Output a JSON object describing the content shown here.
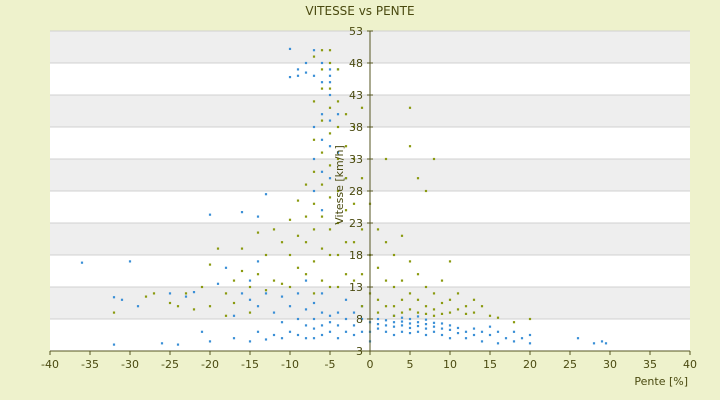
{
  "chart_data": {
    "type": "scatter",
    "title": "VITESSE vs PENTE",
    "xlabel": "Pente [%]",
    "ylabel": "Vitesse [km/h]",
    "xlim": [
      -40,
      40
    ],
    "ylim": [
      3,
      53
    ],
    "x_ticks": [
      "-40",
      "-35",
      "-30",
      "-25",
      "-20",
      "-15",
      "-10",
      "-5",
      "0",
      "5",
      "10",
      "15",
      "20",
      "25",
      "30",
      "35",
      "40"
    ],
    "y_ticks": [
      "3",
      "8",
      "13",
      "18",
      "23",
      "28",
      "33",
      "38",
      "43",
      "48",
      "53"
    ],
    "grid": true,
    "legend": "none",
    "series": [
      {
        "color": "#3a8fd6",
        "points": [
          [
            -36,
            16.8
          ],
          [
            -32,
            4.0
          ],
          [
            -32,
            11.4
          ],
          [
            -31,
            11.0
          ],
          [
            -30,
            17.0
          ],
          [
            -29,
            10.0
          ],
          [
            -26,
            4.2
          ],
          [
            -25,
            12.0
          ],
          [
            -24,
            4.0
          ],
          [
            -23,
            11.5
          ],
          [
            -22,
            12.2
          ],
          [
            -21,
            6.0
          ],
          [
            -20,
            24.3
          ],
          [
            -20,
            4.5
          ],
          [
            -19,
            13.5
          ],
          [
            -18,
            16.0
          ],
          [
            -17,
            5.0
          ],
          [
            -17,
            8.5
          ],
          [
            -16,
            12.0
          ],
          [
            -16,
            24.7
          ],
          [
            -15,
            4.5
          ],
          [
            -15,
            11.0
          ],
          [
            -15,
            14.0
          ],
          [
            -14,
            6.0
          ],
          [
            -14,
            10.0
          ],
          [
            -14,
            17.0
          ],
          [
            -14,
            24.0
          ],
          [
            -13,
            4.8
          ],
          [
            -13,
            12.0
          ],
          [
            -13,
            27.5
          ],
          [
            -12,
            5.5
          ],
          [
            -12,
            9.0
          ],
          [
            -11,
            5.0
          ],
          [
            -11,
            7.5
          ],
          [
            -11,
            11.5
          ],
          [
            -10,
            50.2
          ],
          [
            -10,
            45.8
          ],
          [
            -10,
            6.0
          ],
          [
            -10,
            10.0
          ],
          [
            -9,
            47.0
          ],
          [
            -9,
            46.0
          ],
          [
            -9,
            5.5
          ],
          [
            -9,
            8.0
          ],
          [
            -9,
            12.0
          ],
          [
            -8,
            48.0
          ],
          [
            -8,
            46.5
          ],
          [
            -8,
            5.0
          ],
          [
            -8,
            7.0
          ],
          [
            -8,
            9.5
          ],
          [
            -8,
            14.0
          ],
          [
            -7,
            50.0
          ],
          [
            -7,
            46.0
          ],
          [
            -7,
            38.0
          ],
          [
            -7,
            33.0
          ],
          [
            -7,
            28.0
          ],
          [
            -7,
            5.0
          ],
          [
            -7,
            6.5
          ],
          [
            -7,
            8.0
          ],
          [
            -7,
            10.5
          ],
          [
            -6,
            48.0
          ],
          [
            -6,
            45.0
          ],
          [
            -6,
            40.0
          ],
          [
            -6,
            36.0
          ],
          [
            -6,
            31.0
          ],
          [
            -6,
            25.0
          ],
          [
            -6,
            5.5
          ],
          [
            -6,
            7.0
          ],
          [
            -6,
            9.0
          ],
          [
            -6,
            12.0
          ],
          [
            -5,
            47.0
          ],
          [
            -5,
            46.0
          ],
          [
            -5,
            45.0
          ],
          [
            -5,
            43.0
          ],
          [
            -5,
            39.0
          ],
          [
            -5,
            35.0
          ],
          [
            -5,
            30.0
          ],
          [
            -5,
            6.0
          ],
          [
            -5,
            7.5
          ],
          [
            -5,
            8.5
          ],
          [
            -4,
            47.0
          ],
          [
            -4,
            40.0
          ],
          [
            -4,
            34.0
          ],
          [
            -4,
            5.0
          ],
          [
            -4,
            7.0
          ],
          [
            -4,
            9.0
          ],
          [
            -3,
            30.0
          ],
          [
            -3,
            6.0
          ],
          [
            -3,
            8.0
          ],
          [
            -3,
            11.0
          ],
          [
            -2,
            5.5
          ],
          [
            -2,
            7.0
          ],
          [
            -2,
            9.0
          ],
          [
            -1,
            6.0
          ],
          [
            -1,
            8.0
          ],
          [
            -1,
            10.0
          ],
          [
            0,
            4.5
          ],
          [
            0,
            6.0
          ],
          [
            0,
            7.5
          ],
          [
            1,
            6.5
          ],
          [
            1,
            7.2
          ],
          [
            1,
            8.0
          ],
          [
            2,
            6.0
          ],
          [
            2,
            7.0
          ],
          [
            2,
            7.8
          ],
          [
            3,
            5.5
          ],
          [
            3,
            6.8
          ],
          [
            3,
            7.5
          ],
          [
            3,
            8.5
          ],
          [
            4,
            6.0
          ],
          [
            4,
            7.0
          ],
          [
            4,
            7.6
          ],
          [
            4,
            8.2
          ],
          [
            5,
            5.8
          ],
          [
            5,
            6.6
          ],
          [
            5,
            7.3
          ],
          [
            5,
            8.0
          ],
          [
            6,
            6.0
          ],
          [
            6,
            6.9
          ],
          [
            6,
            7.5
          ],
          [
            6,
            8.4
          ],
          [
            7,
            5.5
          ],
          [
            7,
            6.5
          ],
          [
            7,
            7.2
          ],
          [
            7,
            7.9
          ],
          [
            8,
            6.0
          ],
          [
            8,
            6.8
          ],
          [
            8,
            7.4
          ],
          [
            9,
            5.5
          ],
          [
            9,
            6.5
          ],
          [
            9,
            7.3
          ],
          [
            10,
            5.0
          ],
          [
            10,
            6.3
          ],
          [
            10,
            7.0
          ],
          [
            11,
            5.8
          ],
          [
            11,
            6.6
          ],
          [
            12,
            5.0
          ],
          [
            12,
            6.0
          ],
          [
            13,
            5.5
          ],
          [
            13,
            6.5
          ],
          [
            14,
            4.5
          ],
          [
            14,
            6.0
          ],
          [
            15,
            5.5
          ],
          [
            15,
            6.8
          ],
          [
            16,
            4.2
          ],
          [
            16,
            6.0
          ],
          [
            17,
            5.0
          ],
          [
            18,
            4.5
          ],
          [
            18,
            6.0
          ],
          [
            19,
            5.0
          ],
          [
            20,
            4.2
          ],
          [
            20,
            5.5
          ],
          [
            26,
            5.0
          ],
          [
            28,
            4.2
          ],
          [
            29,
            4.5
          ],
          [
            29.5,
            4.2
          ]
        ]
      },
      {
        "color": "#8a9a10",
        "points": [
          [
            -32,
            9.0
          ],
          [
            -28,
            11.5
          ],
          [
            -27,
            12.0
          ],
          [
            -25,
            10.5
          ],
          [
            -24,
            10.0
          ],
          [
            -23,
            12.0
          ],
          [
            -22,
            9.5
          ],
          [
            -21,
            13.0
          ],
          [
            -20,
            16.5
          ],
          [
            -20,
            10.0
          ],
          [
            -19,
            19.0
          ],
          [
            -18,
            12.0
          ],
          [
            -18,
            8.5
          ],
          [
            -17,
            14.0
          ],
          [
            -17,
            10.5
          ],
          [
            -16,
            15.5
          ],
          [
            -16,
            19.0
          ],
          [
            -15,
            13.0
          ],
          [
            -15,
            9.0
          ],
          [
            -14,
            21.5
          ],
          [
            -14,
            15.0
          ],
          [
            -13,
            12.5
          ],
          [
            -13,
            18.0
          ],
          [
            -12,
            22.0
          ],
          [
            -12,
            14.0
          ],
          [
            -11,
            20.0
          ],
          [
            -11,
            13.5
          ],
          [
            -10,
            23.5
          ],
          [
            -10,
            18.0
          ],
          [
            -10,
            13.0
          ],
          [
            -9,
            26.5
          ],
          [
            -9,
            21.0
          ],
          [
            -9,
            16.0
          ],
          [
            -8,
            29.0
          ],
          [
            -8,
            24.0
          ],
          [
            -8,
            20.0
          ],
          [
            -8,
            15.0
          ],
          [
            -7,
            49.0
          ],
          [
            -7,
            42.0
          ],
          [
            -7,
            36.0
          ],
          [
            -7,
            31.0
          ],
          [
            -7,
            26.0
          ],
          [
            -7,
            22.0
          ],
          [
            -7,
            17.0
          ],
          [
            -7,
            12.0
          ],
          [
            -6,
            50.0
          ],
          [
            -6,
            47.0
          ],
          [
            -6,
            44.0
          ],
          [
            -6,
            39.0
          ],
          [
            -6,
            34.0
          ],
          [
            -6,
            29.0
          ],
          [
            -6,
            24.0
          ],
          [
            -6,
            19.0
          ],
          [
            -6,
            14.0
          ],
          [
            -5,
            50.0
          ],
          [
            -5,
            48.0
          ],
          [
            -5,
            44.0
          ],
          [
            -5,
            41.0
          ],
          [
            -5,
            37.0
          ],
          [
            -5,
            32.0
          ],
          [
            -5,
            27.0
          ],
          [
            -5,
            22.0
          ],
          [
            -5,
            18.0
          ],
          [
            -5,
            13.0
          ],
          [
            -4,
            47.0
          ],
          [
            -4,
            42.0
          ],
          [
            -4,
            38.0
          ],
          [
            -4,
            33.0
          ],
          [
            -4,
            28.0
          ],
          [
            -4,
            23.0
          ],
          [
            -4,
            18.0
          ],
          [
            -4,
            13.0
          ],
          [
            -3,
            40.0
          ],
          [
            -3,
            35.0
          ],
          [
            -3,
            30.0
          ],
          [
            -3,
            25.0
          ],
          [
            -3,
            20.0
          ],
          [
            -3,
            15.0
          ],
          [
            -2,
            38.0
          ],
          [
            -2,
            33.0
          ],
          [
            -2,
            26.0
          ],
          [
            -2,
            20.0
          ],
          [
            -2,
            14.0
          ],
          [
            -1,
            41.0
          ],
          [
            -1,
            30.0
          ],
          [
            -1,
            22.0
          ],
          [
            -1,
            15.0
          ],
          [
            -1,
            10.0
          ],
          [
            0,
            26.0
          ],
          [
            0,
            18.0
          ],
          [
            0,
            12.0
          ],
          [
            1,
            22.0
          ],
          [
            1,
            16.0
          ],
          [
            1,
            11.0
          ],
          [
            1,
            9.0
          ],
          [
            2,
            33.0
          ],
          [
            2,
            20.0
          ],
          [
            2,
            14.0
          ],
          [
            2,
            10.0
          ],
          [
            3,
            18.0
          ],
          [
            3,
            13.0
          ],
          [
            3,
            10.0
          ],
          [
            3,
            8.5
          ],
          [
            4,
            21.0
          ],
          [
            4,
            14.0
          ],
          [
            4,
            11.0
          ],
          [
            4,
            9.0
          ],
          [
            5,
            41.0
          ],
          [
            5,
            35.0
          ],
          [
            5,
            17.0
          ],
          [
            5,
            12.0
          ],
          [
            5,
            9.5
          ],
          [
            6,
            30.0
          ],
          [
            6,
            15.0
          ],
          [
            6,
            11.0
          ],
          [
            6,
            9.0
          ],
          [
            7,
            28.0
          ],
          [
            7,
            13.0
          ],
          [
            7,
            10.0
          ],
          [
            7,
            8.8
          ],
          [
            8,
            33.0
          ],
          [
            8,
            12.0
          ],
          [
            8,
            9.5
          ],
          [
            8,
            8.5
          ],
          [
            9,
            14.0
          ],
          [
            9,
            10.5
          ],
          [
            9,
            8.8
          ],
          [
            10,
            17.0
          ],
          [
            10,
            11.0
          ],
          [
            10,
            9.0
          ],
          [
            11,
            12.0
          ],
          [
            11,
            9.5
          ],
          [
            12,
            10.0
          ],
          [
            12,
            8.8
          ],
          [
            13,
            11.0
          ],
          [
            13,
            9.0
          ],
          [
            14,
            10.0
          ],
          [
            15,
            8.5
          ],
          [
            16,
            8.2
          ],
          [
            18,
            7.5
          ],
          [
            20,
            8.0
          ]
        ]
      }
    ]
  }
}
